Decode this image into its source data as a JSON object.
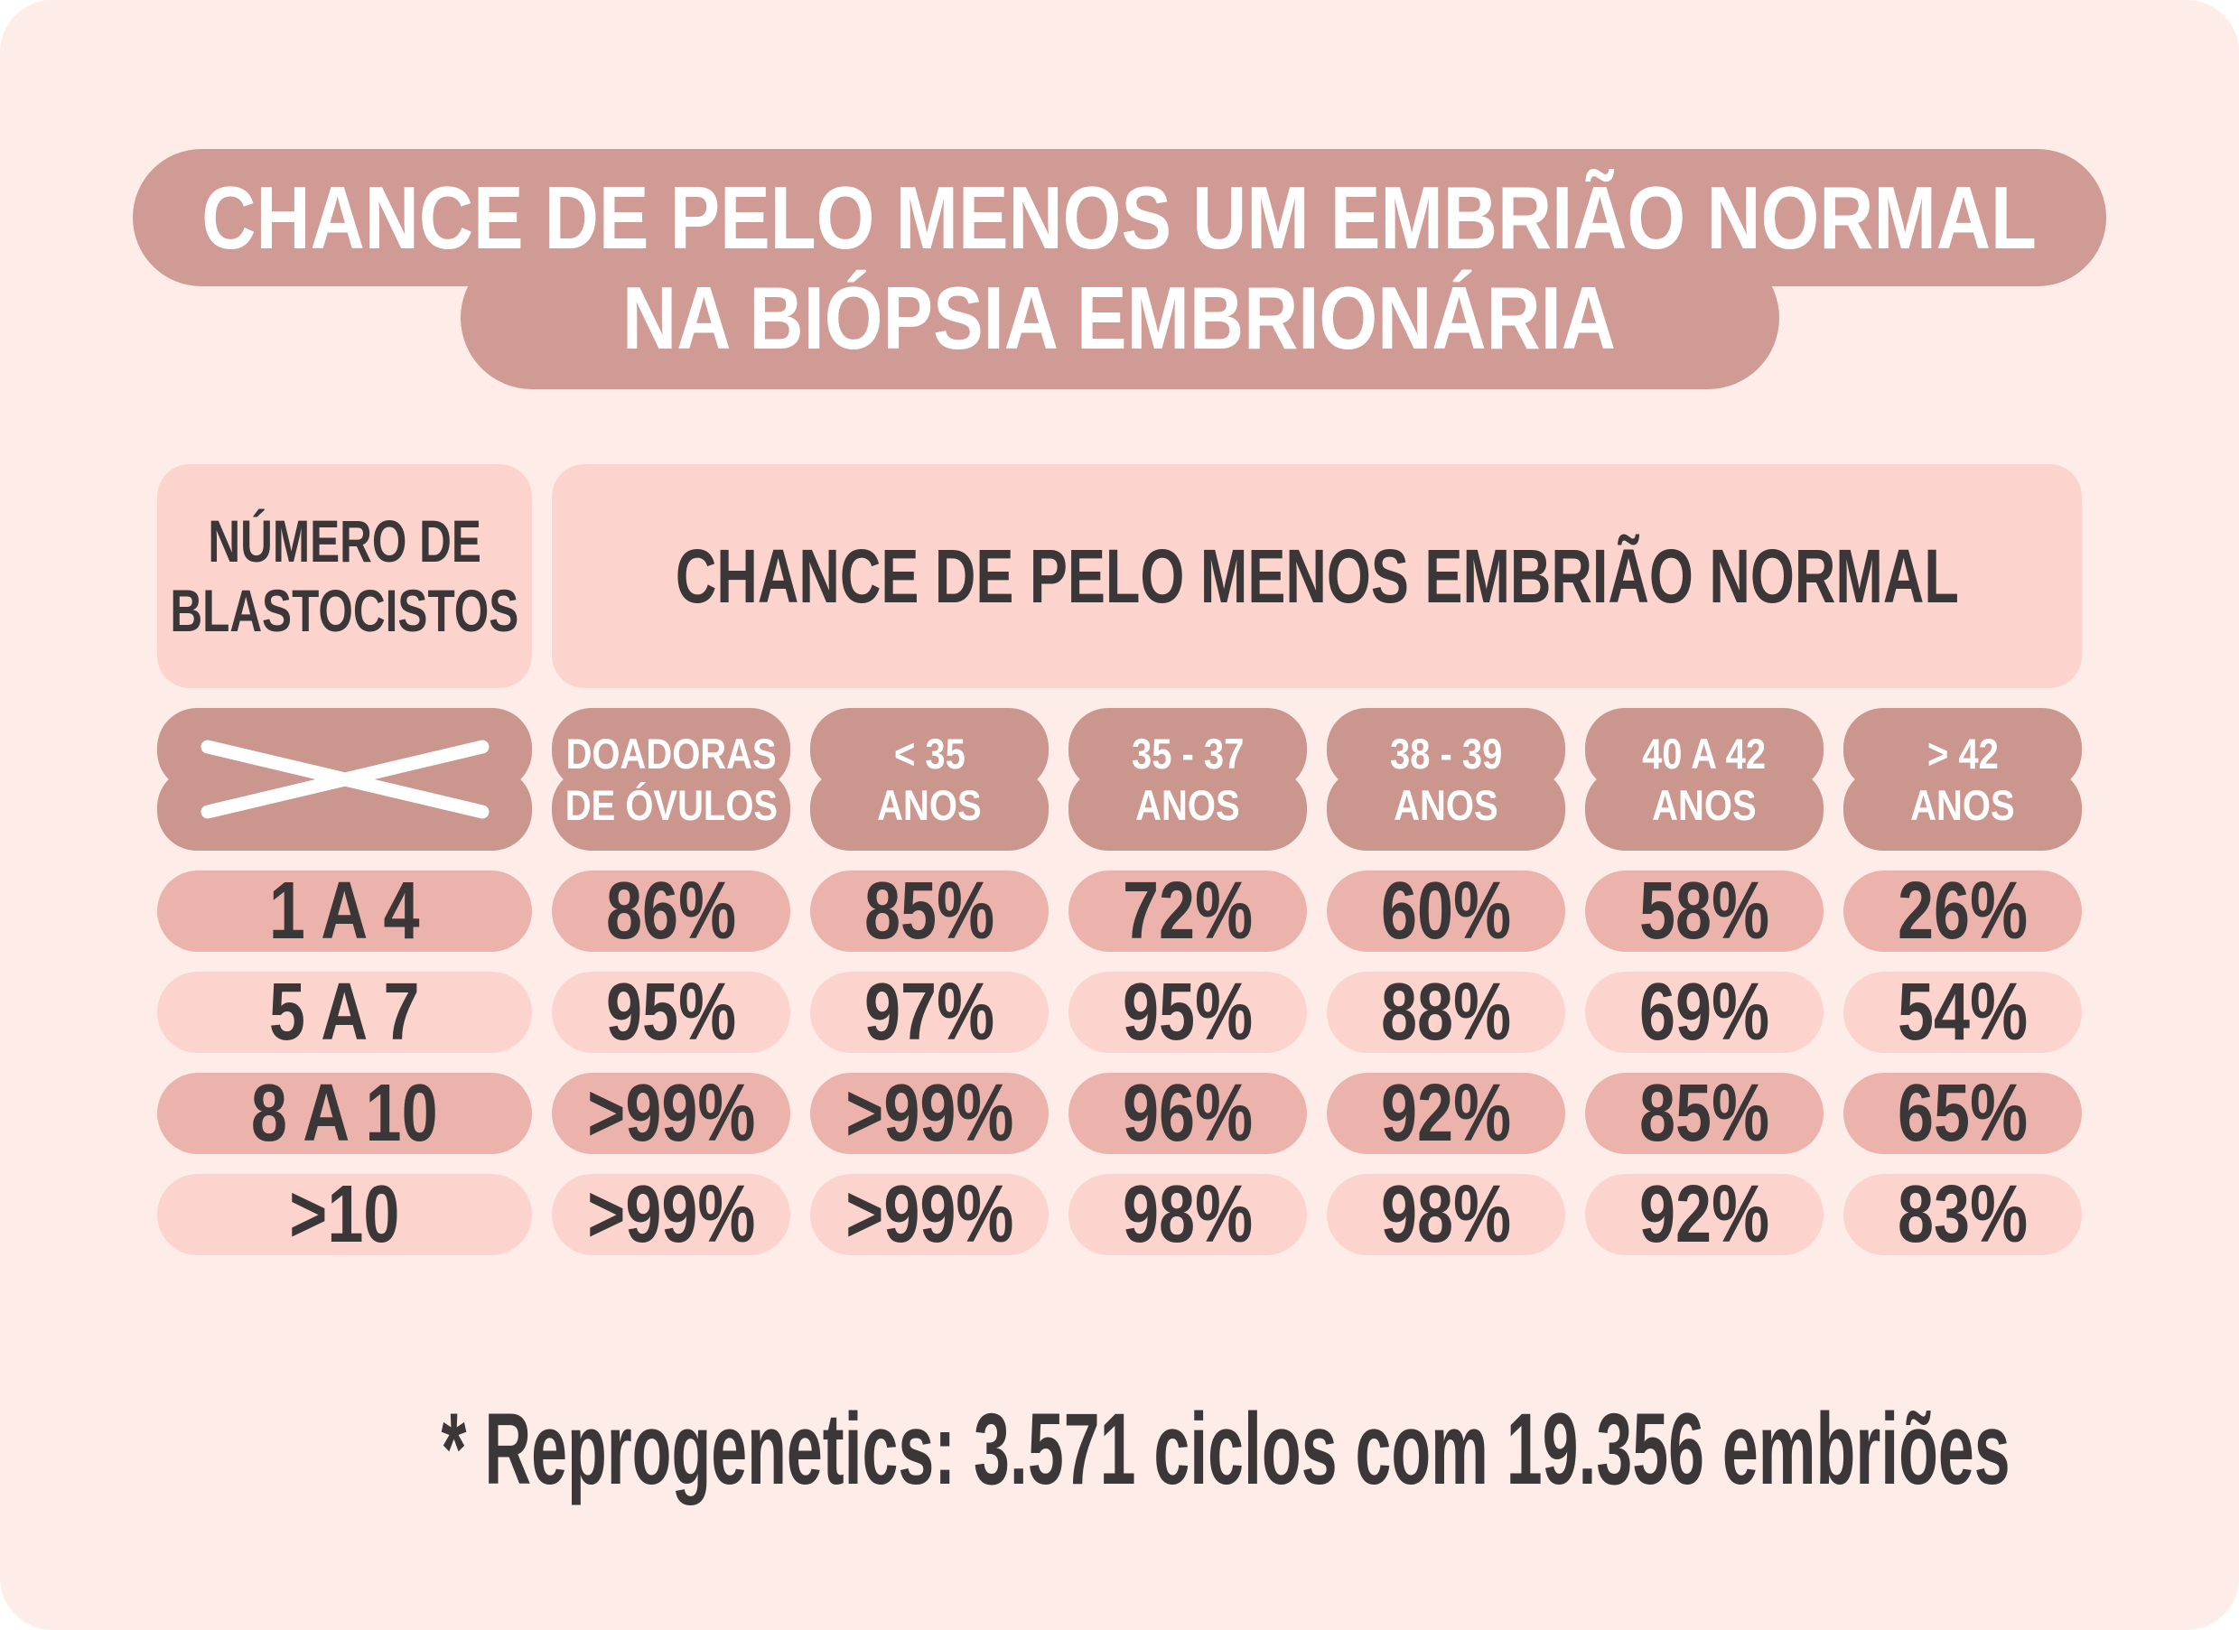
{
  "title": {
    "line1": "CHANCE DE PELO MENOS UM EMBRIÃO NORMAL",
    "line2": "NA BIÓPSIA EMBRIONÁRIA"
  },
  "table": {
    "row_header": {
      "line1": "NÚMERO DE",
      "line2": "BLASTOCISTOS"
    },
    "col_group_header": "CHANCE DE PELO MENOS EMBRIÃO NORMAL",
    "columns": [
      {
        "line1": "DOADORAS",
        "line2": "DE ÓVULOS"
      },
      {
        "line1": "< 35",
        "line2": "ANOS"
      },
      {
        "line1": "35 - 37",
        "line2": "ANOS"
      },
      {
        "line1": "38 - 39",
        "line2": "ANOS"
      },
      {
        "line1": "40 A 42",
        "line2": "ANOS"
      },
      {
        "line1": "> 42",
        "line2": "ANOS"
      }
    ],
    "rows": [
      {
        "label": "1 A 4",
        "values": [
          "86%",
          "85%",
          "72%",
          "60%",
          "58%",
          "26%"
        ]
      },
      {
        "label": "5 A 7",
        "values": [
          "95%",
          "97%",
          "95%",
          "88%",
          "69%",
          "54%"
        ]
      },
      {
        "label": "8 A 10",
        "values": [
          ">99%",
          ">99%",
          "96%",
          "92%",
          "85%",
          "65%"
        ]
      },
      {
        "label": ">10",
        "values": [
          ">99%",
          ">99%",
          "98%",
          "98%",
          "92%",
          "83%"
        ]
      }
    ]
  },
  "footnote": "* Reprogenetics: 3.571 ciclos com 19.356 embriões",
  "icons": {
    "x_marker": "crossed-lines-icon"
  },
  "colors": {
    "background": "#fdece8",
    "title_rose": "#cf9b94",
    "header_rose": "#ca968e",
    "light_pink_cell": "#fcd4cd",
    "medium_pink_cell": "#ebb3ab",
    "dark_text": "#3b3738",
    "white_text": "#ffffff"
  },
  "chart_data": {
    "type": "table",
    "title": "CHANCE DE PELO MENOS UM EMBRIÃO NORMAL NA BIÓPSIA EMBRIONÁRIA",
    "row_axis_label": "NÚMERO DE BLASTOCISTOS",
    "column_group_label": "CHANCE DE PELO MENOS EMBRIÃO NORMAL",
    "columns": [
      "DOADORAS DE ÓVULOS",
      "< 35 ANOS",
      "35 - 37 ANOS",
      "38 - 39 ANOS",
      "40 A 42 ANOS",
      "> 42 ANOS"
    ],
    "rows": [
      {
        "blastocistos": "1 A 4",
        "values_pct": [
          "86%",
          "85%",
          "72%",
          "60%",
          "58%",
          "26%"
        ]
      },
      {
        "blastocistos": "5 A 7",
        "values_pct": [
          "95%",
          "97%",
          "95%",
          "88%",
          "69%",
          "54%"
        ]
      },
      {
        "blastocistos": "8 A 10",
        "values_pct": [
          ">99%",
          ">99%",
          "96%",
          "92%",
          "85%",
          "65%"
        ]
      },
      {
        "blastocistos": ">10",
        "values_pct": [
          ">99%",
          ">99%",
          "98%",
          "98%",
          "92%",
          "83%"
        ]
      }
    ],
    "footnote": "* Reprogenetics: 3.571 ciclos com 19.356 embriões"
  }
}
